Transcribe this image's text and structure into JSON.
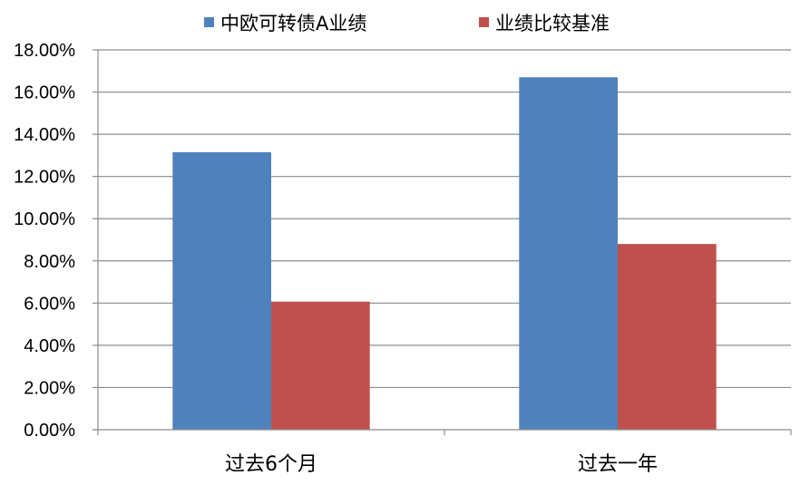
{
  "chart_data": {
    "type": "bar",
    "categories": [
      "过去6个月",
      "过去一年"
    ],
    "series": [
      {
        "name": "中欧可转债A业绩",
        "color": "#4F81BD",
        "values": [
          13.15,
          16.7
        ]
      },
      {
        "name": "业绩比较基准",
        "color": "#C0504D",
        "values": [
          6.07,
          8.8
        ]
      }
    ],
    "ylim": [
      0,
      18
    ],
    "yticks": [
      "0.00%",
      "2.00%",
      "4.00%",
      "6.00%",
      "8.00%",
      "10.00%",
      "12.00%",
      "14.00%",
      "16.00%",
      "18.00%"
    ],
    "grid": true,
    "legend_position": "top",
    "title": "",
    "xlabel": "",
    "ylabel": ""
  }
}
